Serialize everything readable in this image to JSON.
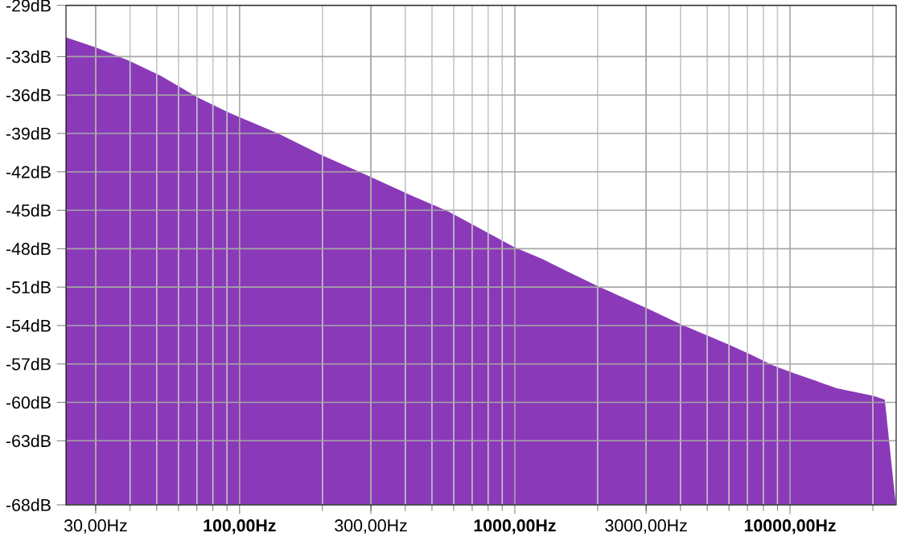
{
  "chart_data": {
    "type": "area",
    "log": "x",
    "grid": true,
    "color": "#8a3ab9",
    "x": [
      23.4,
      23.4,
      30.2,
      39.5,
      51.7,
      70.5,
      92,
      138,
      199,
      286,
      406,
      575,
      1000,
      1256,
      1560,
      2040,
      3055,
      4000,
      6000,
      7245,
      8630,
      10280,
      14800,
      20140,
      22100,
      23660,
      24250
    ],
    "values": [
      -68,
      -31.5,
      -32.3,
      -33.3,
      -34.5,
      -36.2,
      -37.4,
      -39.0,
      -40.7,
      -42.2,
      -43.7,
      -45.1,
      -47.9,
      -48.8,
      -49.8,
      -51.0,
      -52.7,
      -53.9,
      -55.5,
      -56.3,
      -57.1,
      -57.7,
      -58.9,
      -59.5,
      -59.8,
      -65.9,
      -68
    ],
    "xlim": [
      23.4,
      24300
    ],
    "xticks": [
      {
        "value": 30,
        "label": "30,00Hz"
      },
      {
        "value": 100,
        "label": "100,00Hz"
      },
      {
        "value": 300,
        "label": "300,00Hz"
      },
      {
        "value": 1000,
        "label": "1000,00Hz"
      },
      {
        "value": 3000,
        "label": "3000,00Hz"
      },
      {
        "value": 10000,
        "label": "10000,00Hz"
      }
    ],
    "ylim": [
      -68,
      -29
    ],
    "yticks": [
      {
        "value": -29,
        "label": "-29dB"
      },
      {
        "value": -33,
        "label": "-33dB"
      },
      {
        "value": -36,
        "label": "-36dB"
      },
      {
        "value": -39,
        "label": "-39dB"
      },
      {
        "value": -42,
        "label": "-42dB"
      },
      {
        "value": -45,
        "label": "-45dB"
      },
      {
        "value": -48,
        "label": "-48dB"
      },
      {
        "value": -51,
        "label": "-51dB"
      },
      {
        "value": -54,
        "label": "-54dB"
      },
      {
        "value": -57,
        "label": "-57dB"
      },
      {
        "value": -60,
        "label": "-60dB"
      },
      {
        "value": -63,
        "label": "-63dB"
      },
      {
        "value": -68,
        "label": "-68dB"
      }
    ]
  }
}
